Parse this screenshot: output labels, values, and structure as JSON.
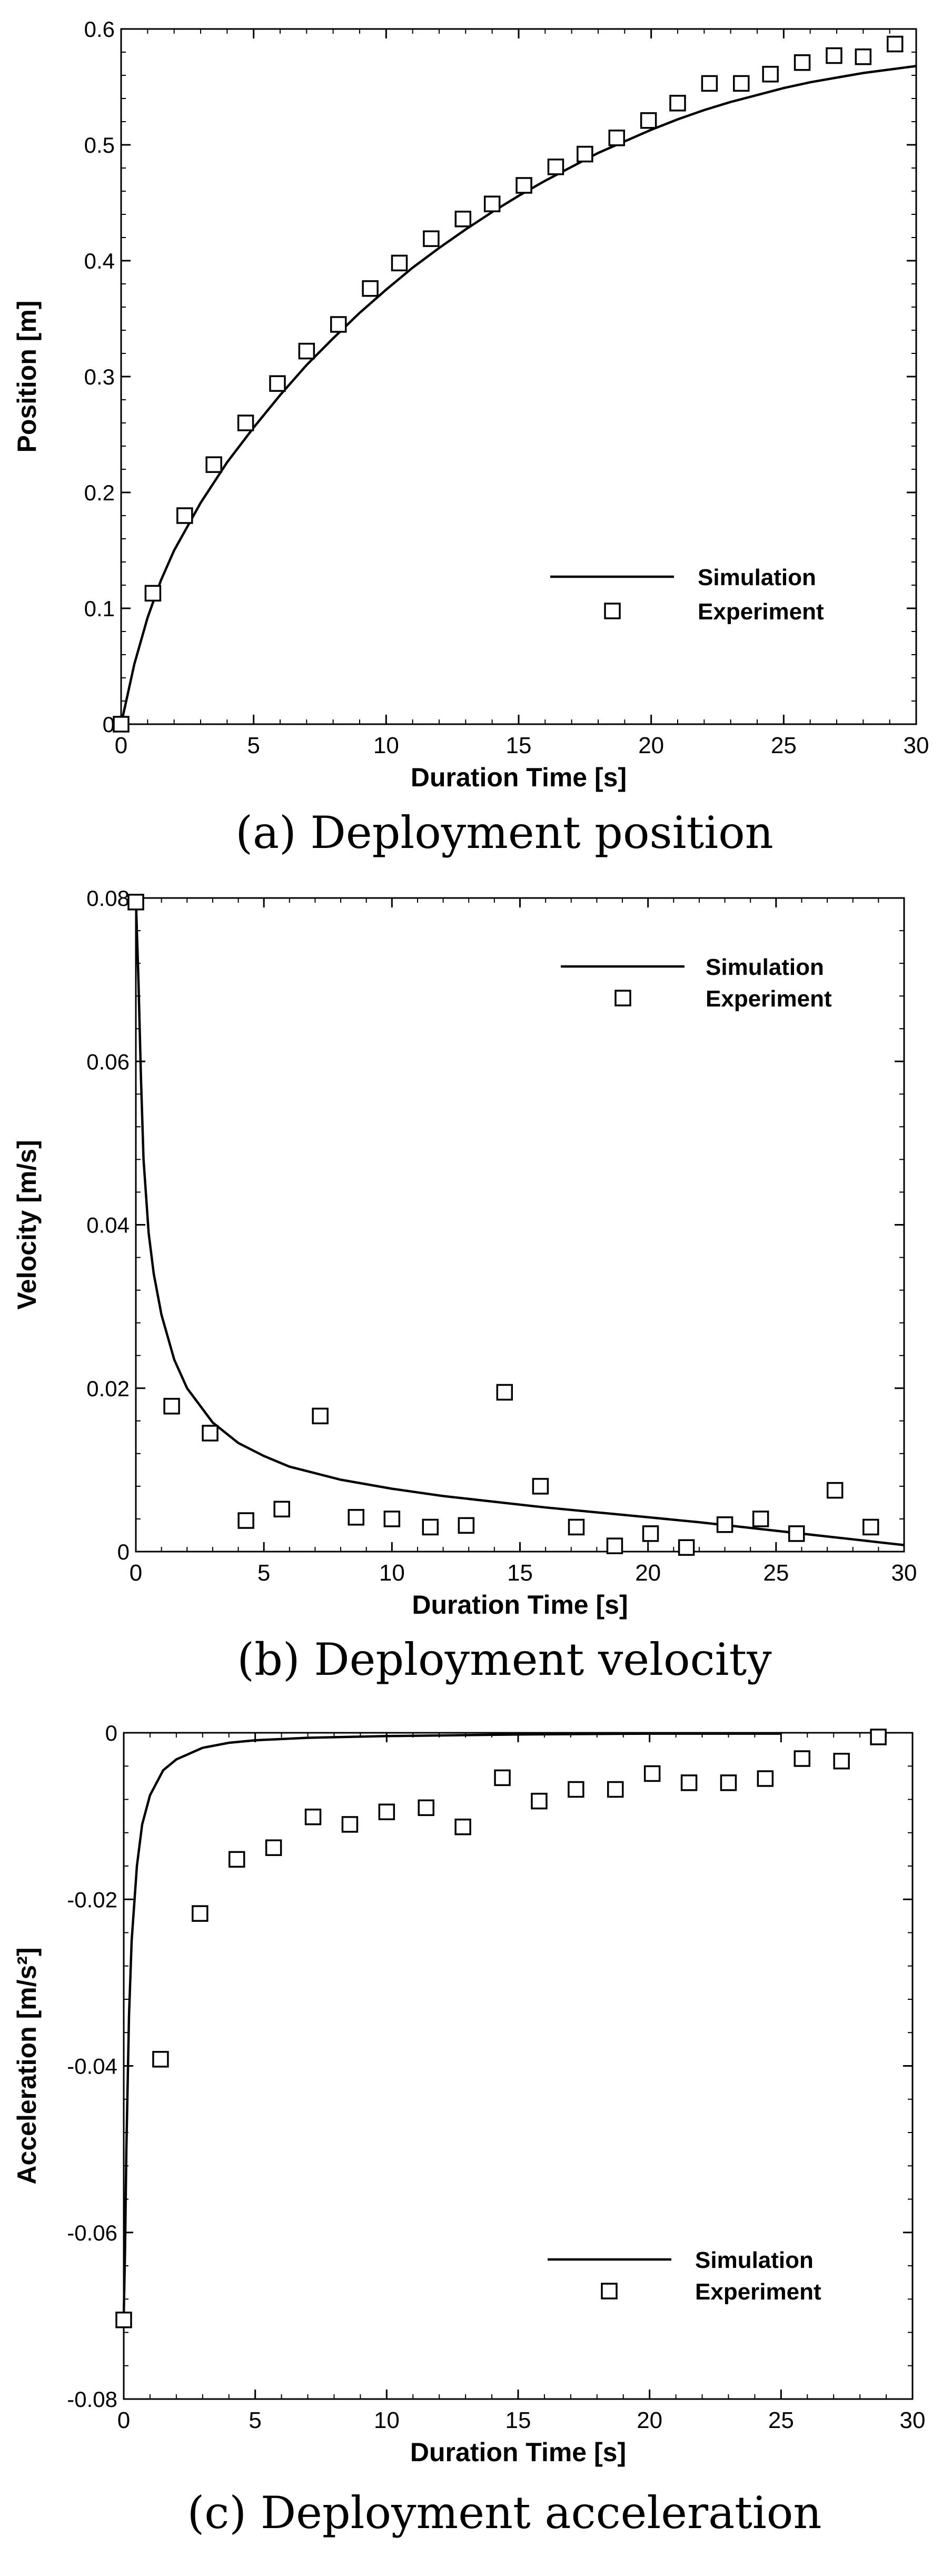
{
  "chart_data": [
    {
      "type": "line",
      "caption": "(a) Deployment  position",
      "xlabel": "Duration Time [s]",
      "ylabel": "Position [m]",
      "xlim": [
        0,
        30
      ],
      "ylim": [
        0,
        0.6
      ],
      "xticks": [
        "0",
        "5",
        "10",
        "15",
        "20",
        "25",
        "30"
      ],
      "yticks": [
        "0",
        "0.1",
        "0.2",
        "0.3",
        "0.4",
        "0.5",
        "0.6"
      ],
      "xtick_values": [
        0,
        5,
        10,
        15,
        20,
        25,
        30
      ],
      "ytick_values": [
        0,
        0.1,
        0.2,
        0.3,
        0.4,
        0.5,
        0.6
      ],
      "grid": false,
      "legend_position": "bottom-right",
      "series": [
        {
          "name": "Simulation",
          "style": "line",
          "x": [
            0,
            0.5,
            1,
            1.5,
            2,
            3,
            4,
            5,
            6,
            7,
            8,
            9,
            10,
            11,
            12,
            13,
            14,
            15,
            16,
            17,
            18,
            19,
            20,
            21,
            22,
            23,
            24,
            25,
            26,
            27,
            28,
            29,
            30
          ],
          "y": [
            0,
            0.052,
            0.092,
            0.124,
            0.15,
            0.191,
            0.226,
            0.256,
            0.284,
            0.31,
            0.333,
            0.355,
            0.375,
            0.394,
            0.411,
            0.427,
            0.442,
            0.456,
            0.469,
            0.481,
            0.493,
            0.503,
            0.513,
            0.522,
            0.53,
            0.537,
            0.543,
            0.549,
            0.554,
            0.558,
            0.562,
            0.565,
            0.568
          ]
        },
        {
          "name": "Experiment",
          "style": "square-marker",
          "x": [
            0,
            1.2,
            2.4,
            3.5,
            4.7,
            5.9,
            7.0,
            8.2,
            9.4,
            10.5,
            11.7,
            12.9,
            14.0,
            15.2,
            16.4,
            17.5,
            18.7,
            19.9,
            21.0,
            22.2,
            23.4,
            24.5,
            25.7,
            26.9,
            28.0,
            29.2
          ],
          "y": [
            0,
            0.113,
            0.18,
            0.224,
            0.26,
            0.294,
            0.322,
            0.345,
            0.376,
            0.398,
            0.419,
            0.436,
            0.449,
            0.465,
            0.481,
            0.492,
            0.506,
            0.521,
            0.536,
            0.553,
            0.553,
            0.561,
            0.571,
            0.577,
            0.576,
            0.587
          ]
        }
      ]
    },
    {
      "type": "line",
      "caption": "(b) Deployment  velocity",
      "xlabel": "Duration Time [s]",
      "ylabel": "Velocity [m/s]",
      "xlim": [
        0,
        30
      ],
      "ylim": [
        0,
        0.08
      ],
      "xticks": [
        "0",
        "5",
        "10",
        "15",
        "20",
        "25",
        "30"
      ],
      "yticks": [
        "0",
        "0.02",
        "0.04",
        "0.06",
        "0.08"
      ],
      "xtick_values": [
        0,
        5,
        10,
        15,
        20,
        25,
        30
      ],
      "ytick_values": [
        0,
        0.02,
        0.04,
        0.06,
        0.08
      ],
      "grid": false,
      "legend_position": "top-right",
      "series": [
        {
          "name": "Simulation",
          "style": "line",
          "x": [
            0,
            0.1,
            0.2,
            0.3,
            0.5,
            0.7,
            1,
            1.5,
            2,
            3,
            4,
            5,
            6,
            8,
            10,
            12,
            14,
            16,
            18,
            20,
            22,
            24,
            26,
            28,
            30
          ],
          "y": [
            0.08,
            0.07,
            0.058,
            0.048,
            0.039,
            0.034,
            0.029,
            0.0235,
            0.02,
            0.0158,
            0.0133,
            0.0117,
            0.0104,
            0.0088,
            0.0077,
            0.0068,
            0.0061,
            0.0054,
            0.0048,
            0.0042,
            0.0036,
            0.0029,
            0.0022,
            0.0015,
            0.0008
          ]
        },
        {
          "name": "Experiment",
          "style": "square-marker",
          "x": [
            0,
            1.4,
            2.9,
            4.3,
            5.7,
            7.2,
            8.6,
            10.0,
            11.5,
            12.9,
            14.4,
            15.8,
            17.2,
            18.7,
            20.1,
            21.5,
            23.0,
            24.4,
            25.8,
            27.3,
            28.7
          ],
          "y": [
            0.0795,
            0.0178,
            0.0145,
            0.0038,
            0.0052,
            0.0166,
            0.0042,
            0.004,
            0.003,
            0.0032,
            0.0195,
            0.008,
            0.003,
            0.0007,
            0.0022,
            0.0005,
            0.0033,
            0.004,
            0.0022,
            0.0075,
            0.003
          ]
        }
      ]
    },
    {
      "type": "line",
      "caption": "(c) Deployment  acceleration",
      "xlabel": "Duration Time [s]",
      "ylabel": "Acceleration [m/s²]",
      "xlim": [
        0,
        30
      ],
      "ylim": [
        -0.08,
        0
      ],
      "xticks": [
        "0",
        "5",
        "10",
        "15",
        "20",
        "25",
        "30"
      ],
      "yticks": [
        "-0.08",
        "-0.06",
        "-0.04",
        "-0.02",
        "0"
      ],
      "xtick_values": [
        0,
        5,
        10,
        15,
        20,
        25,
        30
      ],
      "ytick_values": [
        -0.08,
        -0.06,
        -0.04,
        -0.02,
        0
      ],
      "grid": false,
      "legend_position": "bottom-right",
      "series": [
        {
          "name": "Simulation",
          "style": "line",
          "x": [
            0,
            0.05,
            0.1,
            0.2,
            0.3,
            0.5,
            0.7,
            1,
            1.5,
            2,
            3,
            4,
            5,
            7,
            10,
            15,
            20,
            25
          ],
          "y": [
            -0.07,
            -0.062,
            -0.05,
            -0.034,
            -0.025,
            -0.016,
            -0.011,
            -0.0075,
            -0.0045,
            -0.0032,
            -0.0018,
            -0.0012,
            -0.0009,
            -0.0006,
            -0.0004,
            -0.0002,
            -0.0001,
            -0.0001
          ]
        },
        {
          "name": "Experiment",
          "style": "square-marker",
          "x": [
            0,
            1.4,
            2.9,
            4.3,
            5.7,
            7.2,
            8.6,
            10.0,
            11.5,
            12.9,
            14.4,
            15.8,
            17.2,
            18.7,
            20.1,
            21.5,
            23.0,
            24.4,
            25.8,
            27.3,
            28.7
          ],
          "y": [
            -0.0705,
            -0.0392,
            -0.0217,
            -0.0152,
            -0.0138,
            -0.0101,
            -0.011,
            -0.0095,
            -0.009,
            -0.0113,
            -0.0054,
            -0.0082,
            -0.0068,
            -0.0068,
            -0.0049,
            -0.006,
            -0.006,
            -0.0055,
            -0.0031,
            -0.0034,
            -0.0005
          ]
        }
      ]
    }
  ]
}
